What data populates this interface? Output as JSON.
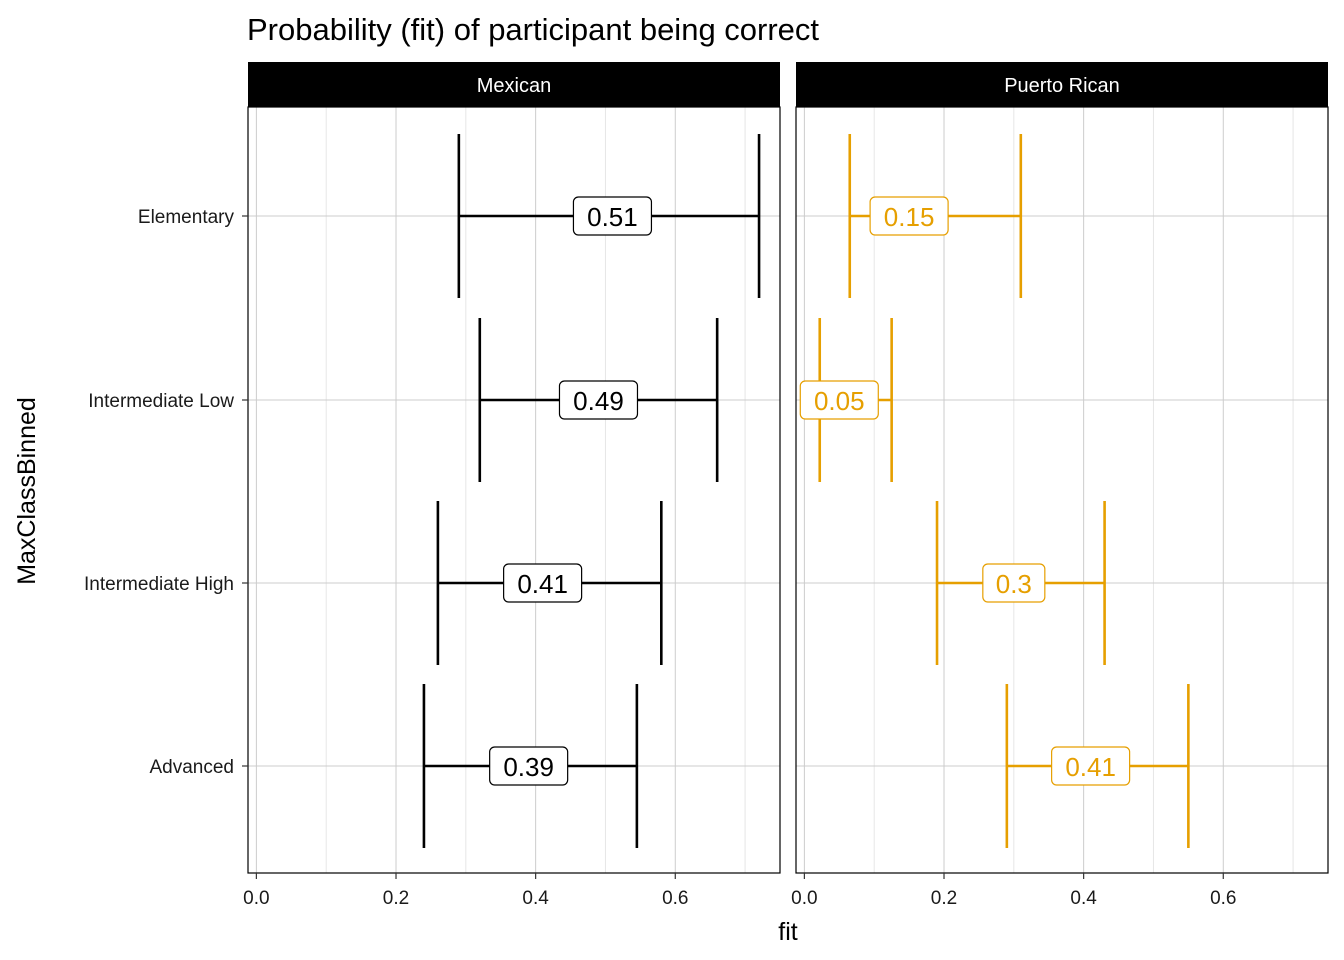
{
  "chart_data": {
    "type": "errorbar",
    "title": "Probability (fit) of participant being correct",
    "xlabel": "fit",
    "ylabel": "MaxClassBinned",
    "xlim": [
      -0.012,
      0.75
    ],
    "x_ticks": [
      "0.0",
      "0.2",
      "0.4",
      "0.6"
    ],
    "x_tick_values": [
      0,
      0.2,
      0.4,
      0.6
    ],
    "categories": [
      "Elementary",
      "Intermediate Low",
      "Intermediate High",
      "Advanced"
    ],
    "grid": true,
    "panels": [
      {
        "name": "Mexican",
        "color": "#000000",
        "points": [
          {
            "category": "Elementary",
            "fit": 0.51,
            "lower": 0.29,
            "upper": 0.72,
            "label": "0.51"
          },
          {
            "category": "Intermediate Low",
            "fit": 0.49,
            "lower": 0.32,
            "upper": 0.66,
            "label": "0.49"
          },
          {
            "category": "Intermediate High",
            "fit": 0.41,
            "lower": 0.26,
            "upper": 0.58,
            "label": "0.41"
          },
          {
            "category": "Advanced",
            "fit": 0.39,
            "lower": 0.24,
            "upper": 0.545,
            "label": "0.39"
          }
        ]
      },
      {
        "name": "Puerto Rican",
        "color": "#E69F00",
        "points": [
          {
            "category": "Elementary",
            "fit": 0.15,
            "lower": 0.065,
            "upper": 0.31,
            "label": "0.15"
          },
          {
            "category": "Intermediate Low",
            "fit": 0.05,
            "lower": 0.022,
            "upper": 0.125,
            "label": "0.05"
          },
          {
            "category": "Intermediate High",
            "fit": 0.3,
            "lower": 0.19,
            "upper": 0.43,
            "label": "0.3"
          },
          {
            "category": "Advanced",
            "fit": 0.41,
            "lower": 0.29,
            "upper": 0.55,
            "label": "0.41"
          }
        ]
      }
    ]
  }
}
